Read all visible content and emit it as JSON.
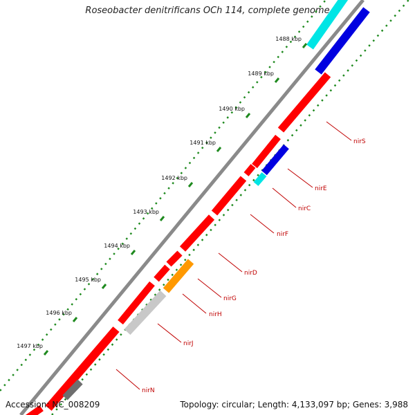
{
  "title": "Roseobacter denitrificans OCh 114, complete genome",
  "accession": "Accession: NC_008209",
  "summary": "Topology: circular; Length: 4,133,097 bp; Genes: 3,988",
  "colors": {
    "red": "#ff0000",
    "blue": "#0000e0",
    "cyan": "#00e5e5",
    "orange": "#ff9900",
    "lightgray": "#c8c8c8",
    "darkgray": "#6e6e6e",
    "backbone": "#8a8a8a",
    "tick": "#1f8a1f",
    "label": "#c00000"
  },
  "ticks": [
    "1488 kbp",
    "1489 kbp",
    "1490 kbp",
    "1491 kbp",
    "1492 kbp",
    "1493 kbp",
    "1494 kbp",
    "1495 kbp",
    "1496 kbp",
    "1497 kbp"
  ],
  "gene_labels": [
    "nirS",
    "nirE",
    "nirC",
    "nirF",
    "nirD",
    "nirG",
    "nirH",
    "nirJ",
    "nirN"
  ]
}
